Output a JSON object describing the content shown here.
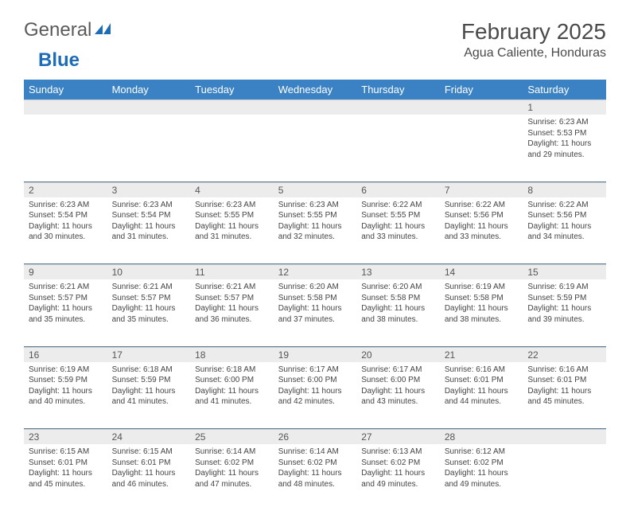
{
  "logo": {
    "general": "General",
    "blue": "Blue"
  },
  "title": "February 2025",
  "location": "Agua Caliente, Honduras",
  "colors": {
    "header_bg": "#3b82c4",
    "header_text": "#ffffff",
    "daynum_bg": "#edecec",
    "week_border": "#5b7a96",
    "text": "#444444",
    "logo_blue": "#1e6bb8",
    "logo_gray": "#5a5a5a"
  },
  "day_headers": [
    "Sunday",
    "Monday",
    "Tuesday",
    "Wednesday",
    "Thursday",
    "Friday",
    "Saturday"
  ],
  "weeks": [
    [
      null,
      null,
      null,
      null,
      null,
      null,
      {
        "n": "1",
        "sr": "6:23 AM",
        "ss": "5:53 PM",
        "dl": "11 hours and 29 minutes."
      }
    ],
    [
      {
        "n": "2",
        "sr": "6:23 AM",
        "ss": "5:54 PM",
        "dl": "11 hours and 30 minutes."
      },
      {
        "n": "3",
        "sr": "6:23 AM",
        "ss": "5:54 PM",
        "dl": "11 hours and 31 minutes."
      },
      {
        "n": "4",
        "sr": "6:23 AM",
        "ss": "5:55 PM",
        "dl": "11 hours and 31 minutes."
      },
      {
        "n": "5",
        "sr": "6:23 AM",
        "ss": "5:55 PM",
        "dl": "11 hours and 32 minutes."
      },
      {
        "n": "6",
        "sr": "6:22 AM",
        "ss": "5:55 PM",
        "dl": "11 hours and 33 minutes."
      },
      {
        "n": "7",
        "sr": "6:22 AM",
        "ss": "5:56 PM",
        "dl": "11 hours and 33 minutes."
      },
      {
        "n": "8",
        "sr": "6:22 AM",
        "ss": "5:56 PM",
        "dl": "11 hours and 34 minutes."
      }
    ],
    [
      {
        "n": "9",
        "sr": "6:21 AM",
        "ss": "5:57 PM",
        "dl": "11 hours and 35 minutes."
      },
      {
        "n": "10",
        "sr": "6:21 AM",
        "ss": "5:57 PM",
        "dl": "11 hours and 35 minutes."
      },
      {
        "n": "11",
        "sr": "6:21 AM",
        "ss": "5:57 PM",
        "dl": "11 hours and 36 minutes."
      },
      {
        "n": "12",
        "sr": "6:20 AM",
        "ss": "5:58 PM",
        "dl": "11 hours and 37 minutes."
      },
      {
        "n": "13",
        "sr": "6:20 AM",
        "ss": "5:58 PM",
        "dl": "11 hours and 38 minutes."
      },
      {
        "n": "14",
        "sr": "6:19 AM",
        "ss": "5:58 PM",
        "dl": "11 hours and 38 minutes."
      },
      {
        "n": "15",
        "sr": "6:19 AM",
        "ss": "5:59 PM",
        "dl": "11 hours and 39 minutes."
      }
    ],
    [
      {
        "n": "16",
        "sr": "6:19 AM",
        "ss": "5:59 PM",
        "dl": "11 hours and 40 minutes."
      },
      {
        "n": "17",
        "sr": "6:18 AM",
        "ss": "5:59 PM",
        "dl": "11 hours and 41 minutes."
      },
      {
        "n": "18",
        "sr": "6:18 AM",
        "ss": "6:00 PM",
        "dl": "11 hours and 41 minutes."
      },
      {
        "n": "19",
        "sr": "6:17 AM",
        "ss": "6:00 PM",
        "dl": "11 hours and 42 minutes."
      },
      {
        "n": "20",
        "sr": "6:17 AM",
        "ss": "6:00 PM",
        "dl": "11 hours and 43 minutes."
      },
      {
        "n": "21",
        "sr": "6:16 AM",
        "ss": "6:01 PM",
        "dl": "11 hours and 44 minutes."
      },
      {
        "n": "22",
        "sr": "6:16 AM",
        "ss": "6:01 PM",
        "dl": "11 hours and 45 minutes."
      }
    ],
    [
      {
        "n": "23",
        "sr": "6:15 AM",
        "ss": "6:01 PM",
        "dl": "11 hours and 45 minutes."
      },
      {
        "n": "24",
        "sr": "6:15 AM",
        "ss": "6:01 PM",
        "dl": "11 hours and 46 minutes."
      },
      {
        "n": "25",
        "sr": "6:14 AM",
        "ss": "6:02 PM",
        "dl": "11 hours and 47 minutes."
      },
      {
        "n": "26",
        "sr": "6:14 AM",
        "ss": "6:02 PM",
        "dl": "11 hours and 48 minutes."
      },
      {
        "n": "27",
        "sr": "6:13 AM",
        "ss": "6:02 PM",
        "dl": "11 hours and 49 minutes."
      },
      {
        "n": "28",
        "sr": "6:12 AM",
        "ss": "6:02 PM",
        "dl": "11 hours and 49 minutes."
      },
      null
    ]
  ],
  "labels": {
    "sunrise": "Sunrise:",
    "sunset": "Sunset:",
    "daylight": "Daylight:"
  }
}
